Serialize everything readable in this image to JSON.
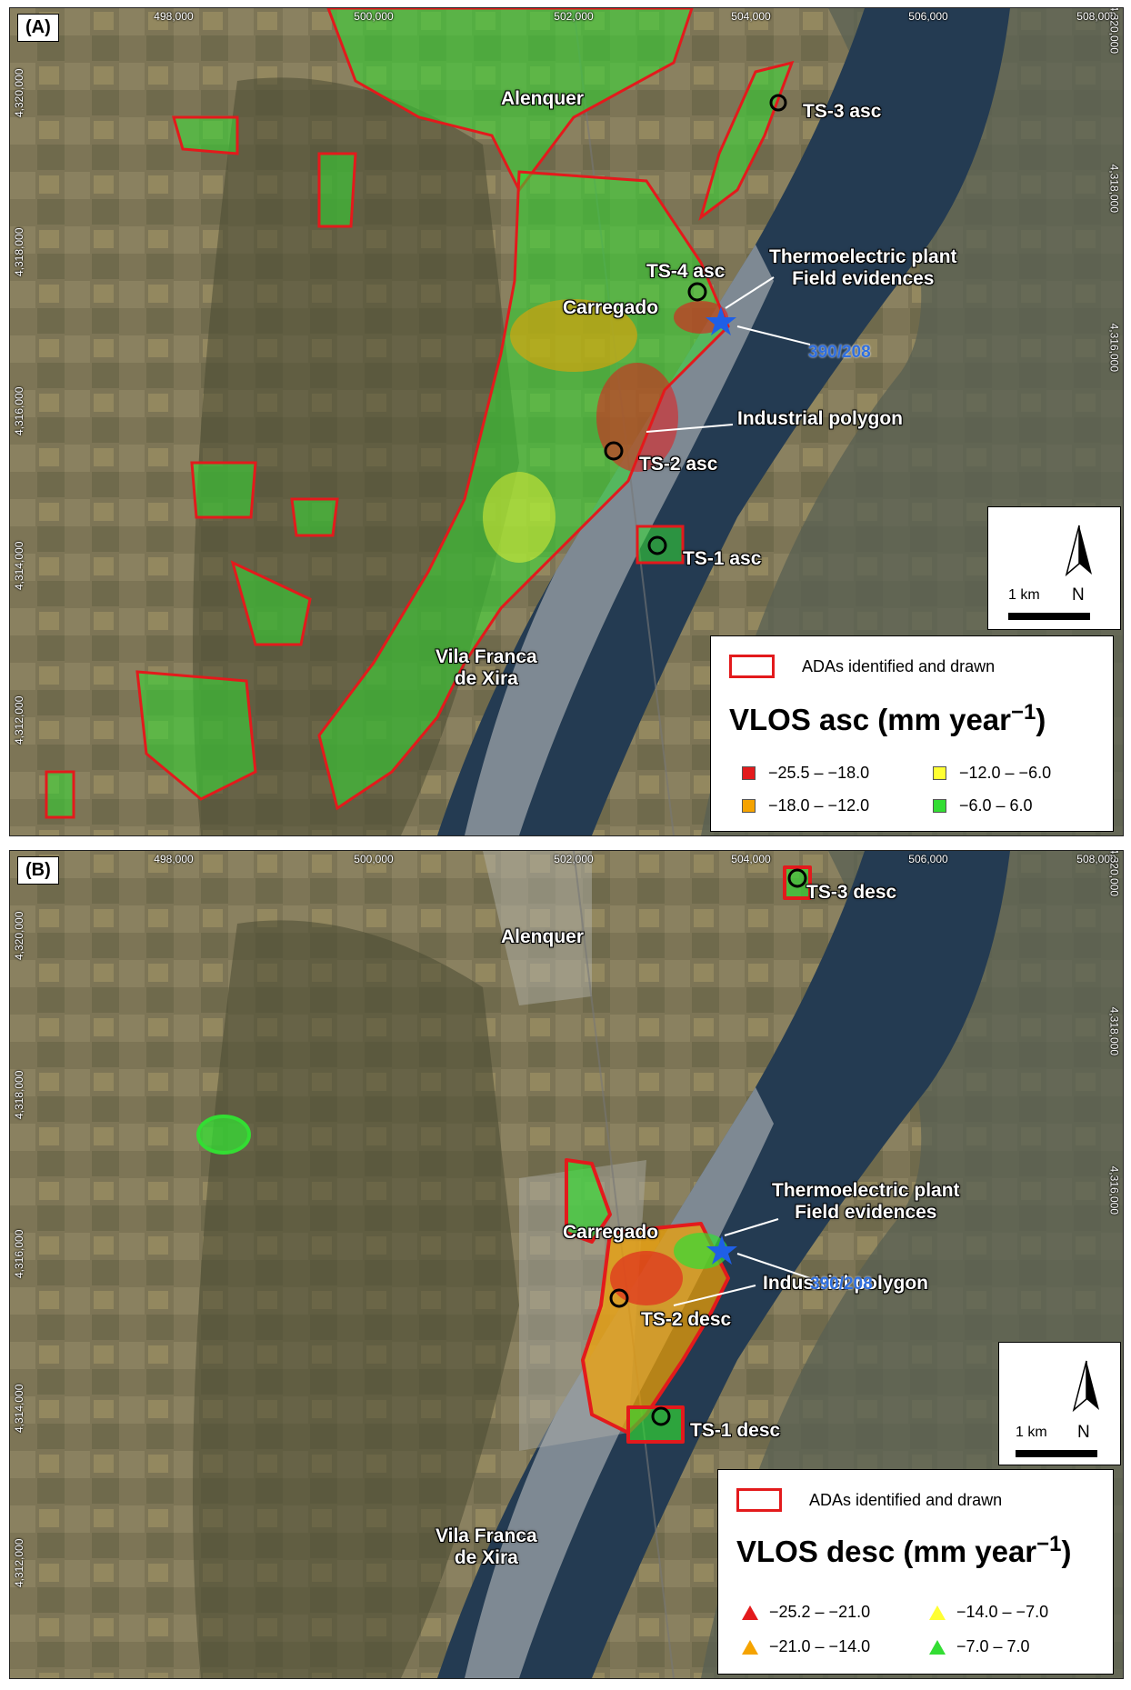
{
  "panels": [
    {
      "id": "A",
      "label": "(A)",
      "x_ticks": [
        "498,000",
        "500,000",
        "502,000",
        "504,000",
        "506,000",
        "508,000"
      ],
      "y_ticks": [
        "4,320,000",
        "4,318,000",
        "4,316,000",
        "4,314,000",
        "4,312,000"
      ],
      "places": {
        "alenquer": "Alenquer",
        "carregado": "Carregado",
        "vila_franca_1": "Vila Franca",
        "vila_franca_2": "de Xira",
        "thermo_1": "Thermoelectric plant",
        "thermo_2": "Field evidences",
        "industrial": "Industrial polygon",
        "code": "390/208"
      },
      "ts_labels": [
        "TS-1 asc",
        "TS-2 asc",
        "TS-3 asc",
        "TS-4 asc"
      ],
      "scale": "1 km",
      "north": "N",
      "legend": {
        "ada_label": "ADAs identified and drawn",
        "title": "VLOS asc (mm year",
        "title_sup": "−1",
        "title_end": ")",
        "marker": "square",
        "classes": [
          {
            "label": "−25.5 – −18.0",
            "color": "#e31a1c"
          },
          {
            "label": "−18.0 – −12.0",
            "color": "#f5a300"
          },
          {
            "label": "−12.0 – −6.0",
            "color": "#ffff33"
          },
          {
            "label": "−6.0 – 6.0",
            "color": "#33dd33"
          }
        ]
      }
    },
    {
      "id": "B",
      "label": "(B)",
      "x_ticks": [
        "498,000",
        "500,000",
        "502,000",
        "504,000",
        "506,000",
        "508,000"
      ],
      "y_ticks": [
        "4,320,000",
        "4,318,000",
        "4,316,000",
        "4,314,000",
        "4,312,000"
      ],
      "places": {
        "alenquer": "Alenquer",
        "carregado": "Carregado",
        "vila_franca_1": "Vila Franca",
        "vila_franca_2": "de Xira",
        "thermo_1": "Thermoelectric plant",
        "thermo_2": "Field evidences",
        "industrial": "Industrial polygon",
        "code": "390/208"
      },
      "ts_labels": [
        "TS-1 desc",
        "TS-2 desc",
        "TS-3 desc"
      ],
      "scale": "1 km",
      "north": "N",
      "legend": {
        "ada_label": "ADAs identified and drawn",
        "title": "VLOS desc (mm year",
        "title_sup": "−1",
        "title_end": ")",
        "marker": "triangle",
        "classes": [
          {
            "label": "−25.2 – −21.0",
            "color": "#e31a1c"
          },
          {
            "label": "−21.0 – −14.0",
            "color": "#f5a300"
          },
          {
            "label": "−14.0 – −7.0",
            "color": "#ffff33"
          },
          {
            "label": "−7.0 – 7.0",
            "color": "#33dd33"
          }
        ]
      }
    }
  ]
}
